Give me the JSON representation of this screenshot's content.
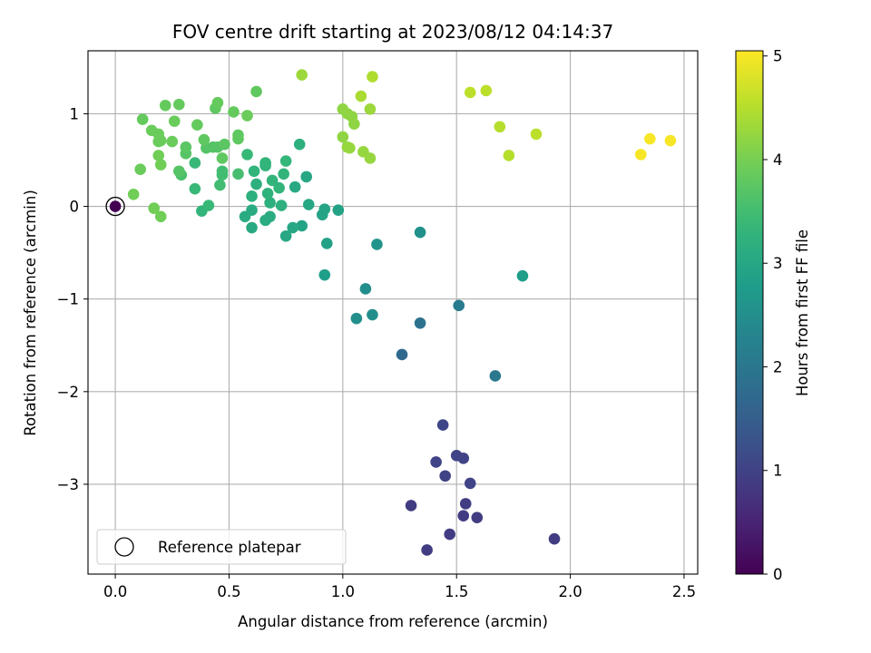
{
  "chart_data": {
    "type": "scatter",
    "title": "FOV centre drift starting at 2023/08/12 04:14:37",
    "xlabel": "Angular distance from reference (arcmin)",
    "ylabel": "Rotation from reference (arcmin)",
    "xlim": [
      -0.12,
      2.56
    ],
    "ylim": [
      -3.97,
      1.68
    ],
    "x_ticks": [
      0.0,
      0.5,
      1.0,
      1.5,
      2.0,
      2.5
    ],
    "x_tick_labels": [
      "0.0",
      "0.5",
      "1.0",
      "1.5",
      "2.0",
      "2.5"
    ],
    "y_ticks": [
      1,
      0,
      -1,
      -2,
      -3
    ],
    "y_tick_labels": [
      "1",
      "0",
      "−1",
      "−2",
      "−3"
    ],
    "grid": true,
    "legend": {
      "placement": "lower-left",
      "entries": [
        {
          "label": "Reference platepar",
          "marker": "hollow-circle"
        }
      ]
    },
    "colorbar": {
      "label": "Hours from first FF file",
      "range": [
        0,
        5.05
      ],
      "ticks": [
        0,
        1,
        2,
        3,
        4,
        5
      ],
      "tick_labels": [
        "0",
        "1",
        "2",
        "3",
        "4",
        "5"
      ],
      "colormap": "viridis"
    },
    "reference_point": {
      "x": 0.0,
      "y": 0.0,
      "hours": 0.0
    },
    "points": [
      {
        "x": 1.3,
        "y": -3.23,
        "hours": 0.9
      },
      {
        "x": 1.37,
        "y": -3.71,
        "hours": 0.9
      },
      {
        "x": 1.47,
        "y": -3.54,
        "hours": 0.9
      },
      {
        "x": 1.53,
        "y": -3.34,
        "hours": 0.9
      },
      {
        "x": 1.59,
        "y": -3.36,
        "hours": 0.9
      },
      {
        "x": 1.54,
        "y": -3.21,
        "hours": 0.9
      },
      {
        "x": 1.93,
        "y": -3.59,
        "hours": 0.9
      },
      {
        "x": 1.41,
        "y": -2.76,
        "hours": 1.0
      },
      {
        "x": 1.45,
        "y": -2.91,
        "hours": 1.0
      },
      {
        "x": 1.5,
        "y": -2.69,
        "hours": 1.0
      },
      {
        "x": 1.53,
        "y": -2.72,
        "hours": 1.0
      },
      {
        "x": 1.56,
        "y": -2.99,
        "hours": 1.0
      },
      {
        "x": 1.44,
        "y": -2.36,
        "hours": 1.05
      },
      {
        "x": 1.26,
        "y": -1.6,
        "hours": 1.7
      },
      {
        "x": 1.34,
        "y": -1.26,
        "hours": 1.9
      },
      {
        "x": 1.67,
        "y": -1.83,
        "hours": 2.0
      },
      {
        "x": 1.51,
        "y": -1.07,
        "hours": 2.1
      },
      {
        "x": 1.06,
        "y": -1.21,
        "hours": 2.5
      },
      {
        "x": 1.13,
        "y": -1.17,
        "hours": 2.5
      },
      {
        "x": 1.1,
        "y": -0.89,
        "hours": 2.5
      },
      {
        "x": 1.34,
        "y": -0.28,
        "hours": 2.55
      },
      {
        "x": 1.15,
        "y": -0.41,
        "hours": 2.6
      },
      {
        "x": 1.79,
        "y": -0.75,
        "hours": 2.8
      },
      {
        "x": 0.92,
        "y": -0.74,
        "hours": 2.8
      },
      {
        "x": 0.93,
        "y": -0.4,
        "hours": 2.9
      },
      {
        "x": 0.98,
        "y": -0.04,
        "hours": 2.9
      },
      {
        "x": 0.91,
        "y": -0.09,
        "hours": 2.95
      },
      {
        "x": 0.92,
        "y": -0.03,
        "hours": 2.95
      },
      {
        "x": 0.82,
        "y": -0.21,
        "hours": 2.95
      },
      {
        "x": 0.78,
        "y": -0.23,
        "hours": 3.0
      },
      {
        "x": 0.75,
        "y": -0.32,
        "hours": 3.0
      },
      {
        "x": 0.85,
        "y": 0.02,
        "hours": 3.0
      },
      {
        "x": 0.84,
        "y": 0.32,
        "hours": 3.0
      },
      {
        "x": 0.79,
        "y": 0.21,
        "hours": 3.05
      },
      {
        "x": 0.81,
        "y": 0.67,
        "hours": 3.2
      },
      {
        "x": 0.6,
        "y": -0.23,
        "hours": 3.05
      },
      {
        "x": 0.6,
        "y": -0.04,
        "hours": 3.1
      },
      {
        "x": 0.57,
        "y": -0.11,
        "hours": 3.1
      },
      {
        "x": 0.66,
        "y": -0.15,
        "hours": 3.1
      },
      {
        "x": 0.68,
        "y": -0.11,
        "hours": 3.1
      },
      {
        "x": 0.68,
        "y": 0.04,
        "hours": 3.2
      },
      {
        "x": 0.73,
        "y": 0.01,
        "hours": 3.2
      },
      {
        "x": 0.6,
        "y": 0.11,
        "hours": 3.2
      },
      {
        "x": 0.62,
        "y": 0.24,
        "hours": 3.2
      },
      {
        "x": 0.67,
        "y": 0.14,
        "hours": 3.25
      },
      {
        "x": 0.72,
        "y": 0.2,
        "hours": 3.3
      },
      {
        "x": 0.69,
        "y": 0.28,
        "hours": 3.3
      },
      {
        "x": 0.74,
        "y": 0.35,
        "hours": 3.3
      },
      {
        "x": 0.75,
        "y": 0.49,
        "hours": 3.35
      },
      {
        "x": 0.66,
        "y": 0.44,
        "hours": 3.3
      },
      {
        "x": 0.66,
        "y": 0.47,
        "hours": 3.3
      },
      {
        "x": 0.61,
        "y": 0.38,
        "hours": 3.3
      },
      {
        "x": 0.58,
        "y": 0.56,
        "hours": 3.4
      },
      {
        "x": 0.38,
        "y": -0.05,
        "hours": 3.3
      },
      {
        "x": 0.41,
        "y": 0.01,
        "hours": 3.4
      },
      {
        "x": 0.35,
        "y": 0.19,
        "hours": 3.4
      },
      {
        "x": 0.35,
        "y": 0.47,
        "hours": 3.4
      },
      {
        "x": 0.46,
        "y": 0.23,
        "hours": 3.5
      },
      {
        "x": 0.47,
        "y": 0.34,
        "hours": 3.5
      },
      {
        "x": 0.47,
        "y": 0.38,
        "hours": 3.5
      },
      {
        "x": 0.54,
        "y": 0.35,
        "hours": 3.55
      },
      {
        "x": 0.28,
        "y": 0.38,
        "hours": 3.7
      },
      {
        "x": 0.29,
        "y": 0.34,
        "hours": 3.6
      },
      {
        "x": 0.31,
        "y": 0.57,
        "hours": 3.7
      },
      {
        "x": 0.31,
        "y": 0.64,
        "hours": 3.75
      },
      {
        "x": 0.4,
        "y": 0.63,
        "hours": 3.7
      },
      {
        "x": 0.43,
        "y": 0.64,
        "hours": 3.65
      },
      {
        "x": 0.45,
        "y": 0.64,
        "hours": 3.7
      },
      {
        "x": 0.48,
        "y": 0.67,
        "hours": 3.75
      },
      {
        "x": 0.47,
        "y": 0.52,
        "hours": 3.8
      },
      {
        "x": 0.54,
        "y": 0.73,
        "hours": 3.8
      },
      {
        "x": 0.54,
        "y": 0.77,
        "hours": 3.8
      },
      {
        "x": 0.39,
        "y": 0.72,
        "hours": 3.8
      },
      {
        "x": 0.36,
        "y": 0.88,
        "hours": 3.85
      },
      {
        "x": 0.58,
        "y": 0.98,
        "hours": 3.9
      },
      {
        "x": 0.52,
        "y": 1.02,
        "hours": 3.85
      },
      {
        "x": 0.44,
        "y": 1.06,
        "hours": 3.8
      },
      {
        "x": 0.45,
        "y": 1.12,
        "hours": 3.85
      },
      {
        "x": 0.62,
        "y": 1.24,
        "hours": 3.8
      },
      {
        "x": 0.22,
        "y": 1.09,
        "hours": 3.85
      },
      {
        "x": 0.28,
        "y": 1.1,
        "hours": 3.85
      },
      {
        "x": 0.26,
        "y": 0.92,
        "hours": 3.9
      },
      {
        "x": 0.12,
        "y": 0.94,
        "hours": 3.85
      },
      {
        "x": 0.16,
        "y": 0.82,
        "hours": 3.9
      },
      {
        "x": 0.19,
        "y": 0.78,
        "hours": 3.9
      },
      {
        "x": 0.2,
        "y": 0.71,
        "hours": 3.9
      },
      {
        "x": 0.19,
        "y": 0.7,
        "hours": 3.9
      },
      {
        "x": 0.25,
        "y": 0.7,
        "hours": 3.9
      },
      {
        "x": 0.19,
        "y": 0.55,
        "hours": 3.95
      },
      {
        "x": 0.2,
        "y": 0.45,
        "hours": 3.95
      },
      {
        "x": 0.11,
        "y": 0.4,
        "hours": 3.9
      },
      {
        "x": 0.08,
        "y": 0.13,
        "hours": 3.95
      },
      {
        "x": 0.17,
        "y": -0.02,
        "hours": 3.95
      },
      {
        "x": 0.2,
        "y": -0.11,
        "hours": 3.95
      },
      {
        "x": 0.82,
        "y": 1.42,
        "hours": 4.3
      },
      {
        "x": 1.0,
        "y": 1.05,
        "hours": 4.2
      },
      {
        "x": 1.02,
        "y": 1.0,
        "hours": 4.2
      },
      {
        "x": 1.04,
        "y": 0.97,
        "hours": 4.2
      },
      {
        "x": 1.05,
        "y": 0.89,
        "hours": 4.2
      },
      {
        "x": 1.0,
        "y": 0.75,
        "hours": 4.2
      },
      {
        "x": 1.02,
        "y": 0.64,
        "hours": 4.25
      },
      {
        "x": 1.03,
        "y": 0.63,
        "hours": 4.25
      },
      {
        "x": 1.09,
        "y": 0.59,
        "hours": 4.25
      },
      {
        "x": 1.12,
        "y": 0.52,
        "hours": 4.25
      },
      {
        "x": 1.12,
        "y": 1.05,
        "hours": 4.3
      },
      {
        "x": 1.08,
        "y": 1.19,
        "hours": 4.4
      },
      {
        "x": 1.13,
        "y": 1.4,
        "hours": 4.45
      },
      {
        "x": 1.56,
        "y": 1.23,
        "hours": 4.55
      },
      {
        "x": 1.63,
        "y": 1.25,
        "hours": 4.55
      },
      {
        "x": 1.69,
        "y": 0.86,
        "hours": 4.5
      },
      {
        "x": 1.73,
        "y": 0.55,
        "hours": 4.5
      },
      {
        "x": 1.85,
        "y": 0.78,
        "hours": 4.55
      },
      {
        "x": 2.31,
        "y": 0.56,
        "hours": 5.0
      },
      {
        "x": 2.35,
        "y": 0.73,
        "hours": 5.0
      },
      {
        "x": 2.44,
        "y": 0.71,
        "hours": 5.0
      }
    ]
  }
}
